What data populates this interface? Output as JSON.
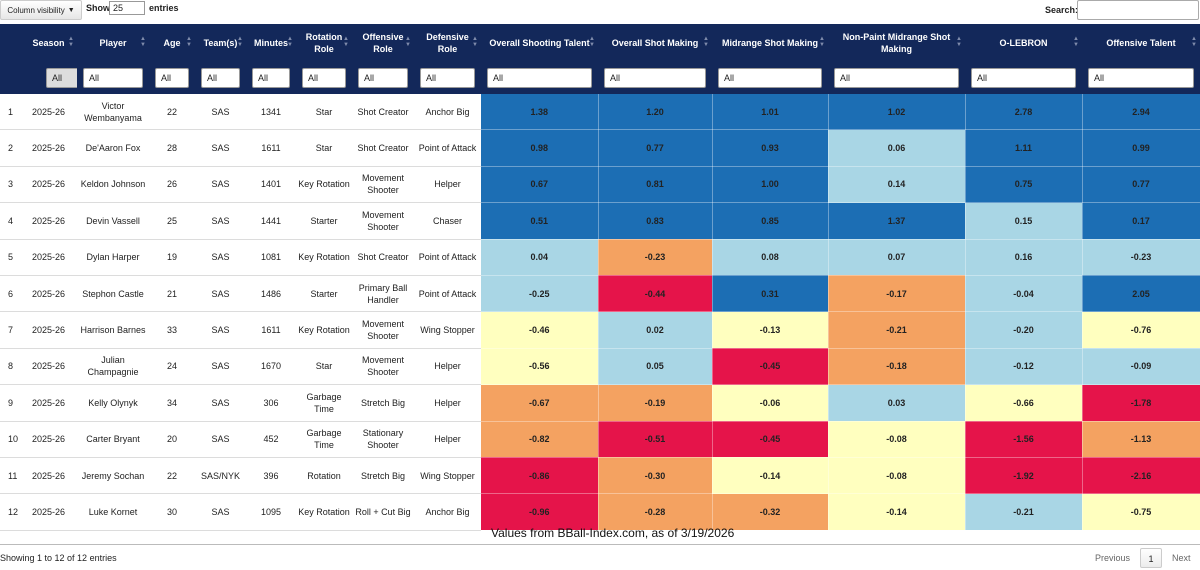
{
  "controls": {
    "column_visibility": "Column visibility",
    "show_label": "Show",
    "page_size": "25",
    "entries_label": "entries",
    "search_label": "Search:",
    "search_value": ""
  },
  "colors": {
    "header_bg": "#13285a",
    "dark_blue": "#1c6eb4",
    "light_blue": "#a9d6e5",
    "pale_yellow": "#ffffbf",
    "orange": "#f4a261",
    "red": "#e5144a"
  },
  "columns": [
    {
      "label": "Season"
    },
    {
      "label": "Player"
    },
    {
      "label": "Age"
    },
    {
      "label": "Team(s)"
    },
    {
      "label": "Minutes"
    },
    {
      "label": "Rotation Role"
    },
    {
      "label": "Offensive Role"
    },
    {
      "label": "Defensive Role"
    },
    {
      "label": "Overall Shooting Talent"
    },
    {
      "label": "Overall Shot Making"
    },
    {
      "label": "Midrange Shot Making"
    },
    {
      "label": "Non-Paint Midrange Shot Making"
    },
    {
      "label": "O-LEBRON"
    },
    {
      "label": "Offensive Talent"
    }
  ],
  "filter_value": "All",
  "rows": [
    {
      "num": "1",
      "season": "2025-26",
      "player": "Victor Wembanyama",
      "age": "22",
      "team": "SAS",
      "minutes": "1341",
      "rotation": "Star",
      "offensive": "Shot Creator",
      "defensive": "Anchor Big",
      "stats": [
        {
          "v": "1.38",
          "c": "#1c6eb4"
        },
        {
          "v": "1.20",
          "c": "#1c6eb4"
        },
        {
          "v": "1.01",
          "c": "#1c6eb4"
        },
        {
          "v": "1.02",
          "c": "#1c6eb4"
        },
        {
          "v": "2.78",
          "c": "#1c6eb4"
        },
        {
          "v": "2.94",
          "c": "#1c6eb4"
        }
      ]
    },
    {
      "num": "2",
      "season": "2025-26",
      "player": "De'Aaron Fox",
      "age": "28",
      "team": "SAS",
      "minutes": "1611",
      "rotation": "Star",
      "offensive": "Shot Creator",
      "defensive": "Point of Attack",
      "stats": [
        {
          "v": "0.98",
          "c": "#1c6eb4"
        },
        {
          "v": "0.77",
          "c": "#1c6eb4"
        },
        {
          "v": "0.93",
          "c": "#1c6eb4"
        },
        {
          "v": "0.06",
          "c": "#a9d6e5"
        },
        {
          "v": "1.11",
          "c": "#1c6eb4"
        },
        {
          "v": "0.99",
          "c": "#1c6eb4"
        }
      ]
    },
    {
      "num": "3",
      "season": "2025-26",
      "player": "Keldon Johnson",
      "age": "26",
      "team": "SAS",
      "minutes": "1401",
      "rotation": "Key Rotation",
      "offensive": "Movement Shooter",
      "defensive": "Helper",
      "stats": [
        {
          "v": "0.67",
          "c": "#1c6eb4"
        },
        {
          "v": "0.81",
          "c": "#1c6eb4"
        },
        {
          "v": "1.00",
          "c": "#1c6eb4"
        },
        {
          "v": "0.14",
          "c": "#a9d6e5"
        },
        {
          "v": "0.75",
          "c": "#1c6eb4"
        },
        {
          "v": "0.77",
          "c": "#1c6eb4"
        }
      ]
    },
    {
      "num": "4",
      "season": "2025-26",
      "player": "Devin Vassell",
      "age": "25",
      "team": "SAS",
      "minutes": "1441",
      "rotation": "Starter",
      "offensive": "Movement Shooter",
      "defensive": "Chaser",
      "stats": [
        {
          "v": "0.51",
          "c": "#1c6eb4"
        },
        {
          "v": "0.83",
          "c": "#1c6eb4"
        },
        {
          "v": "0.85",
          "c": "#1c6eb4"
        },
        {
          "v": "1.37",
          "c": "#1c6eb4"
        },
        {
          "v": "0.15",
          "c": "#a9d6e5"
        },
        {
          "v": "0.17",
          "c": "#1c6eb4"
        }
      ]
    },
    {
      "num": "5",
      "season": "2025-26",
      "player": "Dylan Harper",
      "age": "19",
      "team": "SAS",
      "minutes": "1081",
      "rotation": "Key Rotation",
      "offensive": "Shot Creator",
      "defensive": "Point of Attack",
      "stats": [
        {
          "v": "0.04",
          "c": "#a9d6e5"
        },
        {
          "v": "-0.23",
          "c": "#f4a261"
        },
        {
          "v": "0.08",
          "c": "#a9d6e5"
        },
        {
          "v": "0.07",
          "c": "#a9d6e5"
        },
        {
          "v": "0.16",
          "c": "#a9d6e5"
        },
        {
          "v": "-0.23",
          "c": "#a9d6e5"
        }
      ]
    },
    {
      "num": "6",
      "season": "2025-26",
      "player": "Stephon Castle",
      "age": "21",
      "team": "SAS",
      "minutes": "1486",
      "rotation": "Starter",
      "offensive": "Primary Ball Handler",
      "defensive": "Point of Attack",
      "stats": [
        {
          "v": "-0.25",
          "c": "#a9d6e5"
        },
        {
          "v": "-0.44",
          "c": "#e5144a"
        },
        {
          "v": "0.31",
          "c": "#1c6eb4"
        },
        {
          "v": "-0.17",
          "c": "#f4a261"
        },
        {
          "v": "-0.04",
          "c": "#a9d6e5"
        },
        {
          "v": "2.05",
          "c": "#1c6eb4"
        }
      ]
    },
    {
      "num": "7",
      "season": "2025-26",
      "player": "Harrison Barnes",
      "age": "33",
      "team": "SAS",
      "minutes": "1611",
      "rotation": "Key Rotation",
      "offensive": "Movement Shooter",
      "defensive": "Wing Stopper",
      "stats": [
        {
          "v": "-0.46",
          "c": "#ffffbf"
        },
        {
          "v": "0.02",
          "c": "#a9d6e5"
        },
        {
          "v": "-0.13",
          "c": "#ffffbf"
        },
        {
          "v": "-0.21",
          "c": "#f4a261"
        },
        {
          "v": "-0.20",
          "c": "#a9d6e5"
        },
        {
          "v": "-0.76",
          "c": "#ffffbf"
        }
      ]
    },
    {
      "num": "8",
      "season": "2025-26",
      "player": "Julian Champagnie",
      "age": "24",
      "team": "SAS",
      "minutes": "1670",
      "rotation": "Star",
      "offensive": "Movement Shooter",
      "defensive": "Helper",
      "stats": [
        {
          "v": "-0.56",
          "c": "#ffffbf"
        },
        {
          "v": "0.05",
          "c": "#a9d6e5"
        },
        {
          "v": "-0.45",
          "c": "#e5144a"
        },
        {
          "v": "-0.18",
          "c": "#f4a261"
        },
        {
          "v": "-0.12",
          "c": "#a9d6e5"
        },
        {
          "v": "-0.09",
          "c": "#a9d6e5"
        }
      ]
    },
    {
      "num": "9",
      "season": "2025-26",
      "player": "Kelly Olynyk",
      "age": "34",
      "team": "SAS",
      "minutes": "306",
      "rotation": "Garbage Time",
      "offensive": "Stretch Big",
      "defensive": "Helper",
      "stats": [
        {
          "v": "-0.67",
          "c": "#f4a261"
        },
        {
          "v": "-0.19",
          "c": "#f4a261"
        },
        {
          "v": "-0.06",
          "c": "#ffffbf"
        },
        {
          "v": "0.03",
          "c": "#a9d6e5"
        },
        {
          "v": "-0.66",
          "c": "#ffffbf"
        },
        {
          "v": "-1.78",
          "c": "#e5144a"
        }
      ]
    },
    {
      "num": "10",
      "season": "2025-26",
      "player": "Carter Bryant",
      "age": "20",
      "team": "SAS",
      "minutes": "452",
      "rotation": "Garbage Time",
      "offensive": "Stationary Shooter",
      "defensive": "Helper",
      "stats": [
        {
          "v": "-0.82",
          "c": "#f4a261"
        },
        {
          "v": "-0.51",
          "c": "#e5144a"
        },
        {
          "v": "-0.45",
          "c": "#e5144a"
        },
        {
          "v": "-0.08",
          "c": "#ffffbf"
        },
        {
          "v": "-1.56",
          "c": "#e5144a"
        },
        {
          "v": "-1.13",
          "c": "#f4a261"
        }
      ]
    },
    {
      "num": "11",
      "season": "2025-26",
      "player": "Jeremy Sochan",
      "age": "22",
      "team": "SAS/NYK",
      "minutes": "396",
      "rotation": "Rotation",
      "offensive": "Stretch Big",
      "defensive": "Wing Stopper",
      "stats": [
        {
          "v": "-0.86",
          "c": "#e5144a"
        },
        {
          "v": "-0.30",
          "c": "#f4a261"
        },
        {
          "v": "-0.14",
          "c": "#ffffbf"
        },
        {
          "v": "-0.08",
          "c": "#ffffbf"
        },
        {
          "v": "-1.92",
          "c": "#e5144a"
        },
        {
          "v": "-2.16",
          "c": "#e5144a"
        }
      ]
    },
    {
      "num": "12",
      "season": "2025-26",
      "player": "Luke Kornet",
      "age": "30",
      "team": "SAS",
      "minutes": "1095",
      "rotation": "Key Rotation",
      "offensive": "Roll + Cut Big",
      "defensive": "Anchor Big",
      "stats": [
        {
          "v": "-0.96",
          "c": "#e5144a"
        },
        {
          "v": "-0.28",
          "c": "#f4a261"
        },
        {
          "v": "-0.32",
          "c": "#f4a261"
        },
        {
          "v": "-0.14",
          "c": "#ffffbf"
        },
        {
          "v": "-0.21",
          "c": "#a9d6e5"
        },
        {
          "v": "-0.75",
          "c": "#ffffbf"
        }
      ]
    }
  ],
  "footnote": "Values from BBall-Index.com, as of 3/19/2026",
  "footer": {
    "info": "Showing 1 to 12 of 12 entries",
    "previous": "Previous",
    "page": "1",
    "next": "Next"
  }
}
